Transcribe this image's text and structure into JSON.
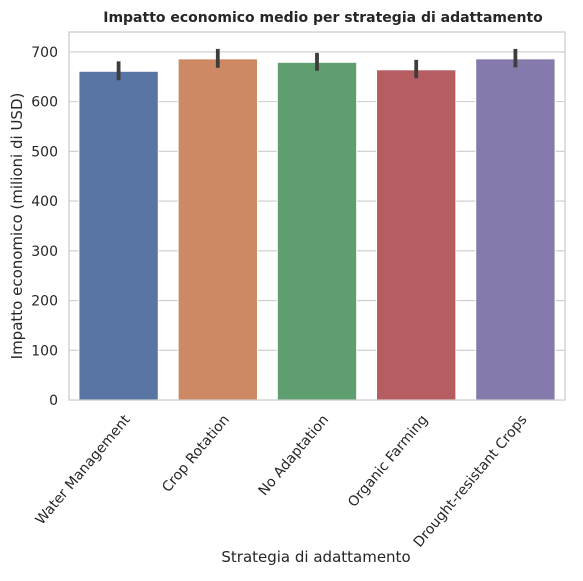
{
  "chart_data": {
    "type": "bar",
    "title": "Impatto economico medio per strategia di adattamento",
    "xlabel": "Strategia di adattamento",
    "ylabel": "Impatto economico (milioni di USD)",
    "categories": [
      "Water Management",
      "Crop Rotation",
      "No Adaptation",
      "Organic Farming",
      "Drought-resistant Crops"
    ],
    "values": [
      661,
      686,
      679,
      664,
      686
    ],
    "error_low": [
      643,
      668,
      662,
      647,
      669
    ],
    "error_high": [
      681,
      706,
      698,
      684,
      706
    ],
    "colors": [
      "#5975A4",
      "#CC8963",
      "#5F9E6E",
      "#B55D60",
      "#857AAB"
    ],
    "ylim": [
      0,
      740
    ],
    "yticks": [
      "0",
      "100",
      "200",
      "300",
      "400",
      "500",
      "600",
      "700"
    ],
    "grid": true,
    "legend": "none"
  }
}
